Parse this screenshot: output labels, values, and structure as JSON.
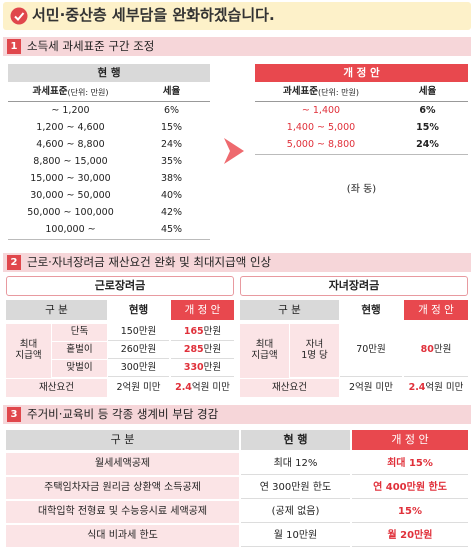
{
  "header": {
    "title": "서민·중산층 세부담을 완화하겠습니다."
  },
  "sections": [
    {
      "number": "1",
      "title": "소득세 과세표준 구간 조정",
      "current": {
        "label": "현 행",
        "columns": [
          "과세표준",
          "세율"
        ],
        "unit": "(단위: 만원)",
        "rows": [
          [
            "~ 1,200",
            "6%"
          ],
          [
            "1,200 ~ 4,600",
            "15%"
          ],
          [
            "4,600 ~ 8,800",
            "24%"
          ],
          [
            "8,800 ~ 15,000",
            "35%"
          ],
          [
            "15,000 ~ 30,000",
            "38%"
          ],
          [
            "30,000 ~ 50,000",
            "40%"
          ],
          [
            "50,000 ~ 100,000",
            "42%"
          ],
          [
            "100,000 ~",
            "45%"
          ]
        ]
      },
      "revised": {
        "label": "개 정 안",
        "columns": [
          "과세표준",
          "세율"
        ],
        "unit": "(단위: 만원)",
        "rows": [
          [
            "~ 1,400",
            "6%"
          ],
          [
            "1,400 ~ 5,000",
            "15%"
          ],
          [
            "5,000 ~ 8,800",
            "24%"
          ]
        ],
        "note": "(좌 동)"
      }
    },
    {
      "number": "2",
      "title": "근로·자녀장려금 재산요건 완화 및 최대지급액 인상",
      "tables": [
        {
          "name": "근로장려금",
          "columns": [
            "구 분",
            "현행",
            "개 정 안"
          ],
          "group": "최대 지급액",
          "rows": [
            {
              "item": "단독",
              "current": "150만원",
              "revised": [
                "165",
                "만원"
              ]
            },
            {
              "item": "홑벌이",
              "current": "260만원",
              "revised": [
                "285",
                "만원"
              ]
            },
            {
              "item": "맞벌이",
              "current": "300만원",
              "revised": [
                "330",
                "만원"
              ]
            }
          ],
          "asset": {
            "item": "재산요건",
            "current": "2억원 미만",
            "revised": [
              "2.4",
              "억원 미만"
            ]
          }
        },
        {
          "name": "자녀장려금",
          "columns": [
            "구 분",
            "현행",
            "개 정 안"
          ],
          "group": "최대 지급액",
          "rows": [
            {
              "item": "자녀 1명 당",
              "current": "70만원",
              "revised": [
                "80",
                "만원"
              ]
            }
          ],
          "asset": {
            "item": "재산요건",
            "current": "2억원 미만",
            "revised": [
              "2.4",
              "억원 미만"
            ]
          }
        }
      ]
    },
    {
      "number": "3",
      "title": "주거비·교육비 등 각종 생계비 부담 경감",
      "columns": [
        "구 분",
        "현 행",
        "개 정 안"
      ],
      "rows": [
        [
          "월세세액공제",
          "최대 12%",
          "최대 15%"
        ],
        [
          "주택임차자금 원리금 상환액 소득공제",
          "연 300만원 한도",
          "연 400만원 한도"
        ],
        [
          "대학입학 전형료 및 수능응시료 세액공제",
          "(공제 없음)",
          "15%"
        ],
        [
          "식대 비과세 한도",
          "월 10만원",
          "월 20만원"
        ]
      ]
    }
  ]
}
